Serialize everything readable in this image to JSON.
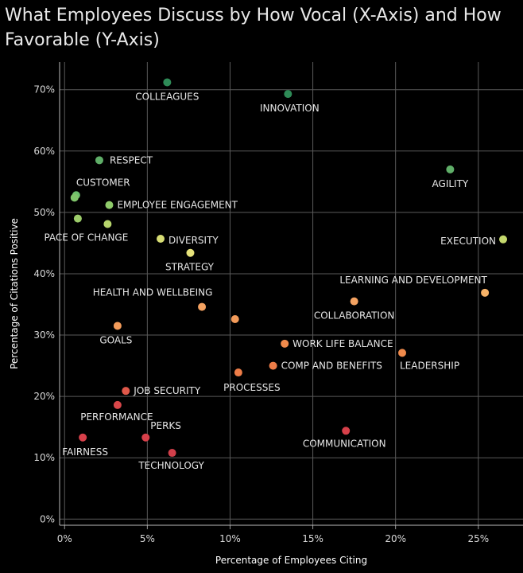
{
  "page": {
    "title": "What Employees Discuss by How Vocal (X-Axis) and How Favorable (Y-Axis)"
  },
  "chart_data": {
    "type": "scatter",
    "title": "What Employees Discuss by How Vocal (X-Axis) and How Favorable (Y-Axis)",
    "xlabel": "Percentage of Employees Citing",
    "ylabel": "Percentage of Citations Positive",
    "xlim": [
      -0.3,
      27.7
    ],
    "ylim": [
      -1.0,
      74.5
    ],
    "xticks": [
      0,
      5,
      10,
      15,
      20,
      25
    ],
    "xtick_labels": [
      "0%",
      "5%",
      "10%",
      "15%",
      "20%",
      "25%"
    ],
    "yticks": [
      0,
      10,
      20,
      30,
      40,
      50,
      60,
      70
    ],
    "ytick_labels": [
      "0%",
      "10%",
      "20%",
      "30%",
      "40%",
      "50%",
      "60%",
      "70%"
    ],
    "grid": true,
    "colors": {
      "dark_green": "#2e8b57",
      "green": "#6cbf6c",
      "light_green": "#c5d86d",
      "yellow": "#e4e37a",
      "orange": "#f4a261",
      "dark_orange": "#f08a4b",
      "red": "#d7404a"
    },
    "points": [
      {
        "name": "COLLEAGUES",
        "x": 6.2,
        "y": 71.2,
        "color": "#2e8b57",
        "label": "COLLEAGUES"
      },
      {
        "name": "INNOVATION",
        "x": 13.5,
        "y": 69.3,
        "color": "#2e8b57",
        "label": "INNOVATION"
      },
      {
        "name": "RESPECT",
        "x": 2.1,
        "y": 58.5,
        "color": "#5fae68",
        "label": "RESPECT"
      },
      {
        "name": "AGILITY",
        "x": 23.3,
        "y": 57.0,
        "color": "#5fae68",
        "label": "AGILITY"
      },
      {
        "name": "CUSTOMER",
        "x": 0.7,
        "y": 52.8,
        "color": "#6cbf6c",
        "label": "CUSTOMER"
      },
      {
        "name": "CUSTOMER-2",
        "x": 0.6,
        "y": 52.4,
        "color": "#7fc46a",
        "label": ""
      },
      {
        "name": "EMPLOYEE ENGAGEMENT",
        "x": 2.7,
        "y": 51.2,
        "color": "#8fcb6a",
        "label": "EMPLOYEE ENGAGEMENT"
      },
      {
        "name": "PACE-OF-CHANGE-A",
        "x": 0.8,
        "y": 49.0,
        "color": "#9ccc6a",
        "label": ""
      },
      {
        "name": "PACE OF CHANGE",
        "x": 2.6,
        "y": 48.1,
        "color": "#b6d46c",
        "label": "PACE OF CHANGE"
      },
      {
        "name": "DIVERSITY",
        "x": 5.8,
        "y": 45.7,
        "color": "#d7dd74",
        "label": "DIVERSITY"
      },
      {
        "name": "EXECUTION",
        "x": 26.5,
        "y": 45.6,
        "color": "#c5d86d",
        "label": "EXECUTION"
      },
      {
        "name": "STRATEGY",
        "x": 7.6,
        "y": 43.4,
        "color": "#e6e27a",
        "label": "STRATEGY"
      },
      {
        "name": "LEARNING AND DEVELOPMENT",
        "x": 25.4,
        "y": 36.9,
        "color": "#f7b267",
        "label": "LEARNING AND DEVELOPMENT"
      },
      {
        "name": "COLLABORATION",
        "x": 17.5,
        "y": 35.5,
        "color": "#f4a261",
        "label": "COLLABORATION"
      },
      {
        "name": "HEALTH AND WELLBEING",
        "x": 8.3,
        "y": 34.6,
        "color": "#f4a261",
        "label": "HEALTH AND WELLBEING"
      },
      {
        "name": "HEALTH-2",
        "x": 10.3,
        "y": 32.6,
        "color": "#f39b5a",
        "label": ""
      },
      {
        "name": "GOALS",
        "x": 3.2,
        "y": 31.5,
        "color": "#f39b5a",
        "label": "GOALS"
      },
      {
        "name": "WORK LIFE BALANCE",
        "x": 13.3,
        "y": 28.6,
        "color": "#f08a4b",
        "label": "WORK LIFE BALANCE"
      },
      {
        "name": "LEADERSHIP",
        "x": 20.4,
        "y": 27.1,
        "color": "#f08a4b",
        "label": "LEADERSHIP"
      },
      {
        "name": "COMP AND BENEFITS",
        "x": 12.6,
        "y": 25.0,
        "color": "#ee7d48",
        "label": "COMP AND BENEFITS"
      },
      {
        "name": "PROCESSES",
        "x": 10.5,
        "y": 23.9,
        "color": "#ee7d48",
        "label": "PROCESSES"
      },
      {
        "name": "JOB SECURITY",
        "x": 3.7,
        "y": 20.9,
        "color": "#e0584a",
        "label": "JOB SECURITY"
      },
      {
        "name": "PERFORMANCE",
        "x": 3.2,
        "y": 18.6,
        "color": "#d9474a",
        "label": "PERFORMANCE"
      },
      {
        "name": "COMMUNICATION",
        "x": 17.0,
        "y": 14.4,
        "color": "#d7404a",
        "label": "COMMUNICATION"
      },
      {
        "name": "FAIRNESS",
        "x": 1.1,
        "y": 13.3,
        "color": "#d7404a",
        "label": "FAIRNESS"
      },
      {
        "name": "PERKS",
        "x": 4.9,
        "y": 13.3,
        "color": "#d7404a",
        "label": "PERKS"
      },
      {
        "name": "TECHNOLOGY",
        "x": 6.5,
        "y": 10.8,
        "color": "#d13f4a",
        "label": "TECHNOLOGY"
      }
    ]
  }
}
